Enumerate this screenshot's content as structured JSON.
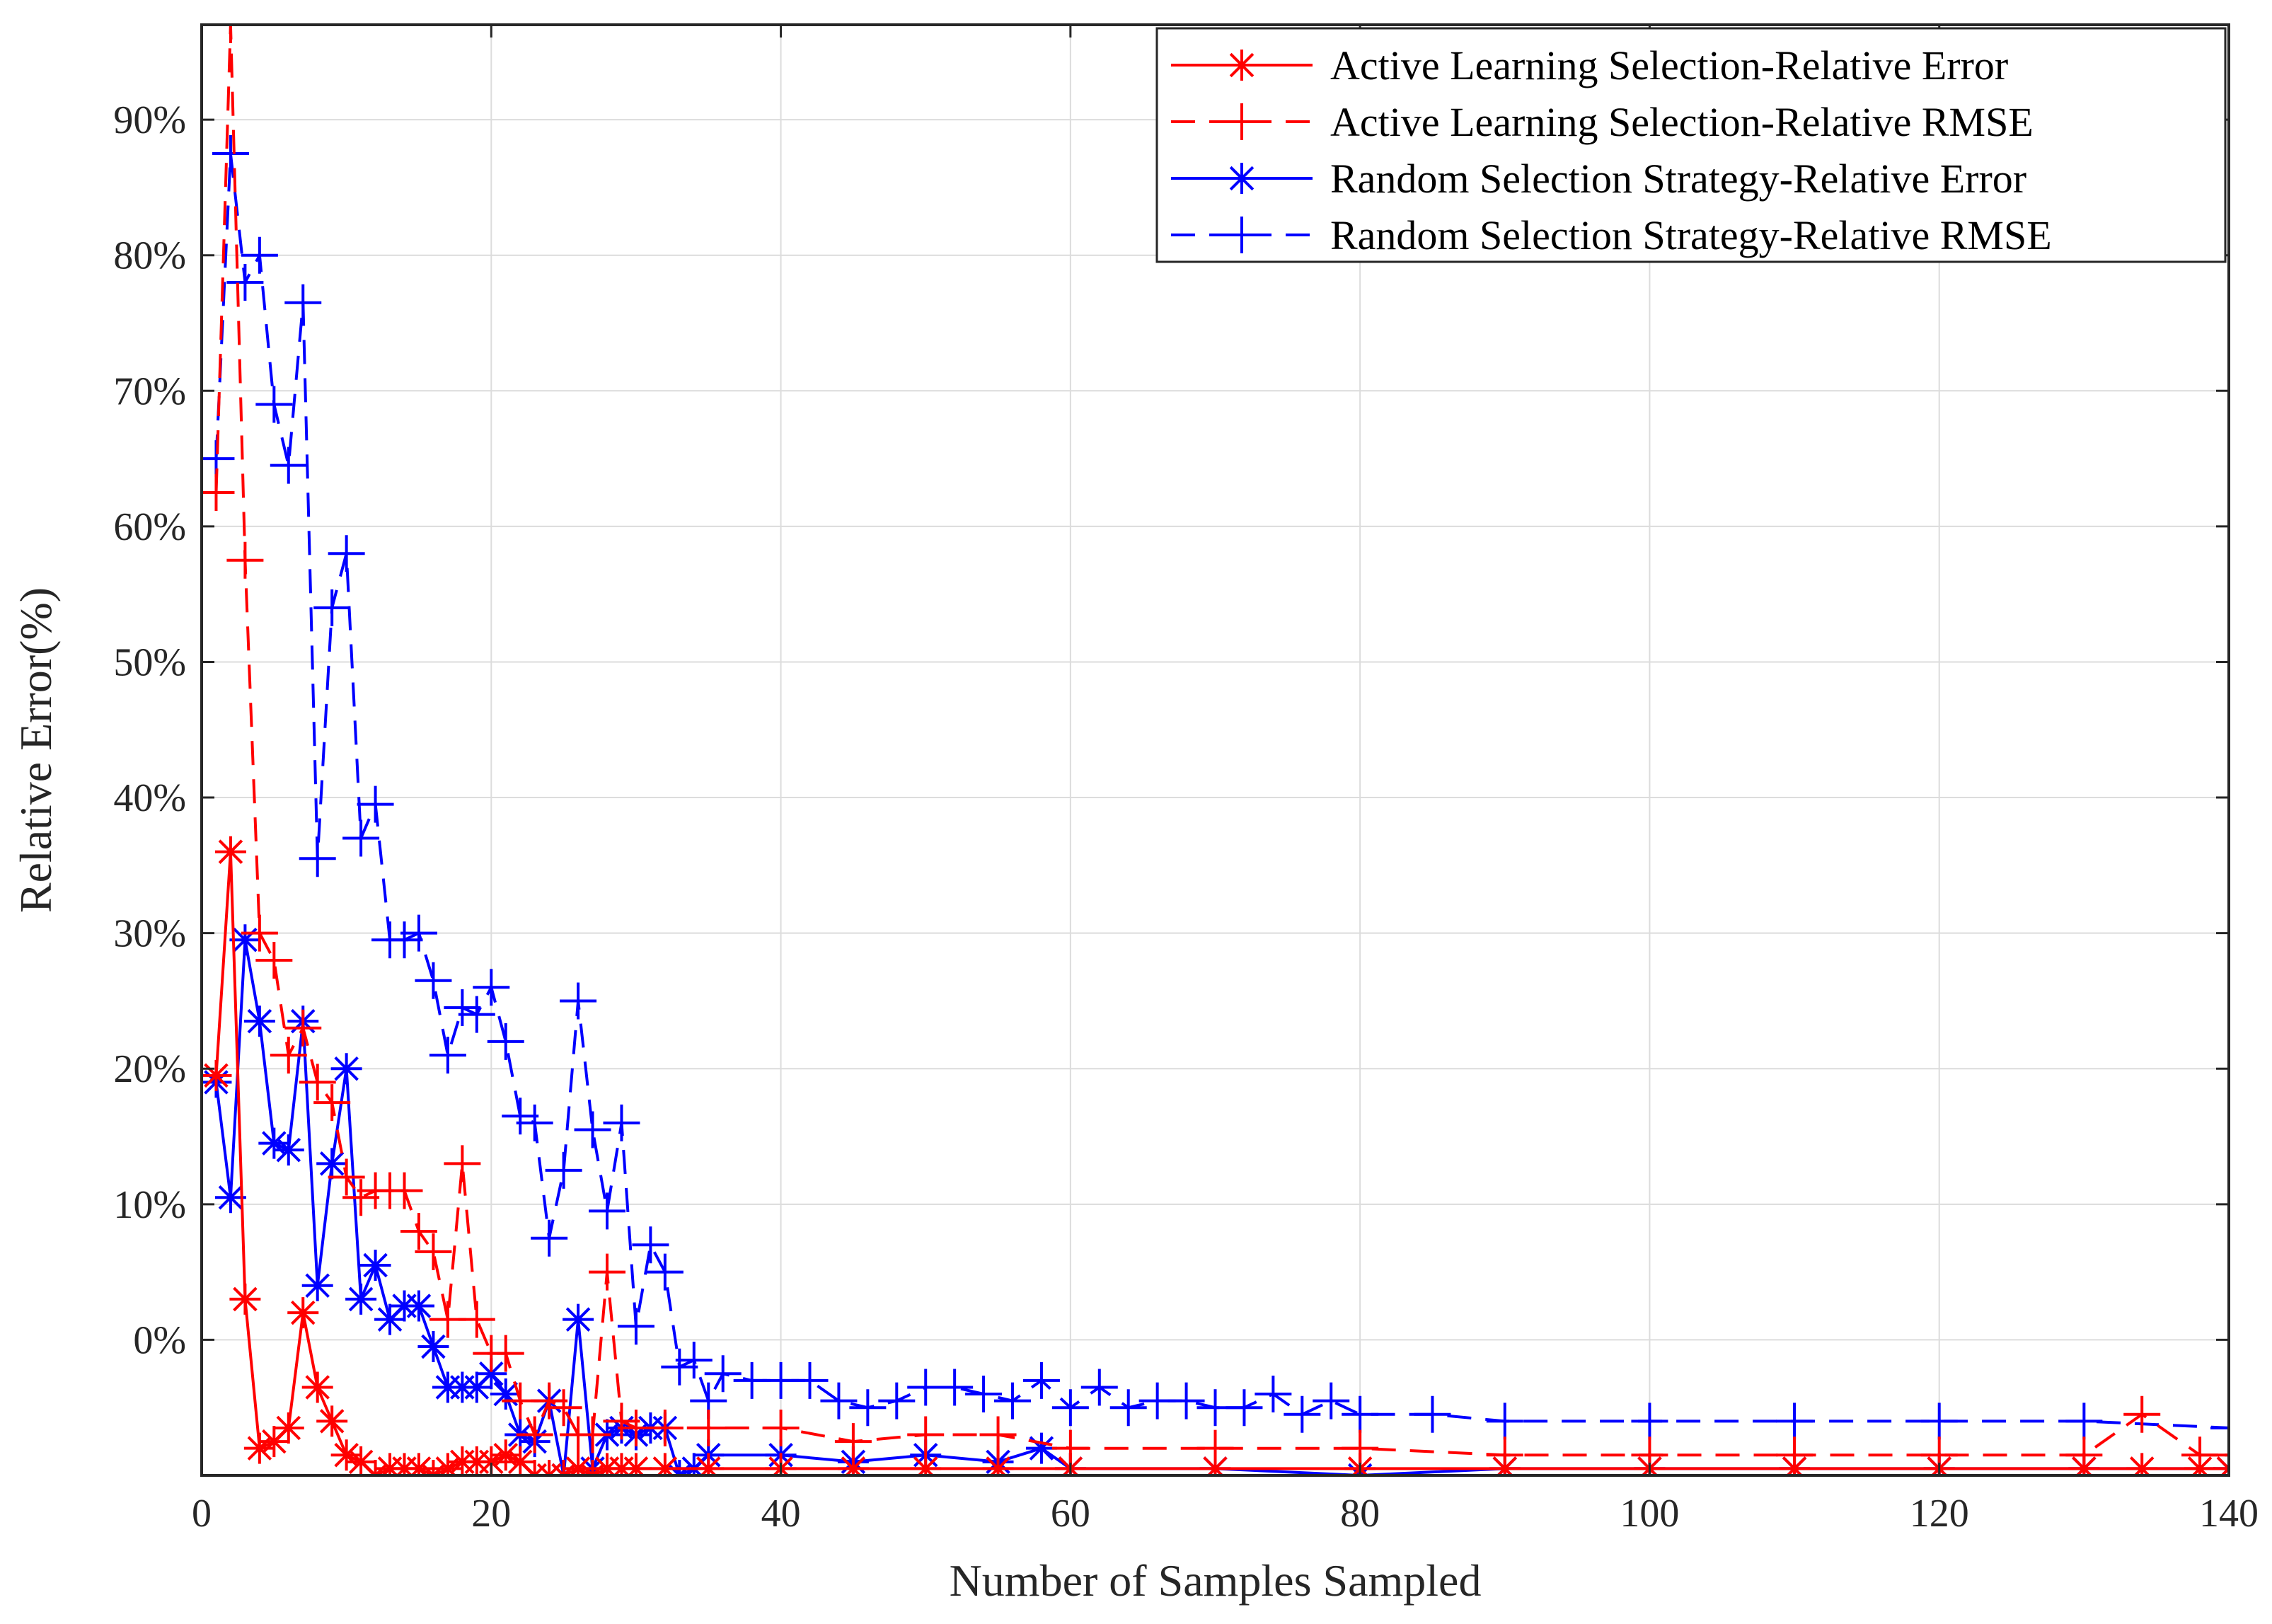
{
  "chart_data": {
    "type": "line",
    "title": "",
    "xlabel": "Number of Samples Sampled",
    "ylabel": "Relative Error(%)",
    "xlim": [
      0,
      140
    ],
    "ylim": [
      -10,
      97
    ],
    "grid": true,
    "legend_position": "top-right",
    "x_ticks": [
      0,
      20,
      40,
      60,
      80,
      100,
      120,
      140
    ],
    "x_tick_labels": [
      "0",
      "20",
      "40",
      "60",
      "80",
      "100",
      "120",
      "140"
    ],
    "y_ticks": [
      0,
      10,
      20,
      30,
      40,
      50,
      60,
      70,
      80,
      90
    ],
    "y_tick_labels": [
      "0%",
      "10%",
      "20%",
      "30%",
      "40%",
      "50%",
      "60%",
      "70%",
      "80%",
      "90%"
    ],
    "series": [
      {
        "name": "Active Learning Selection-Relative Error",
        "color": "#ff0000",
        "line_style": "solid",
        "marker": "asterisk",
        "x": [
          1,
          2,
          3,
          4,
          5,
          6,
          7,
          8,
          9,
          10,
          11,
          12,
          13,
          14,
          15,
          16,
          17,
          18,
          19,
          20,
          21,
          22,
          23,
          24,
          25,
          26,
          27,
          28,
          29,
          30,
          32,
          35,
          40,
          45,
          50,
          55,
          60,
          70,
          80,
          90,
          100,
          110,
          120,
          130,
          134,
          138,
          140
        ],
        "y": [
          19.5,
          36,
          3,
          -8,
          -7.5,
          -6.5,
          2,
          -3.5,
          -6,
          -8.5,
          -9,
          -10,
          -9.5,
          -9.5,
          -9.5,
          -10,
          -9.5,
          -9,
          -9,
          -9,
          -8.5,
          -9,
          -10,
          -10,
          -10,
          -9.5,
          -10,
          -9.5,
          -9.5,
          -9.5,
          -9.5,
          -9.5,
          -9.5,
          -9.5,
          -9.5,
          -9.5,
          -9.5,
          -9.5,
          -9.5,
          -9.5,
          -9.5,
          -9.5,
          -9.5,
          -9.5,
          -9.5,
          -9.5,
          -9.5
        ]
      },
      {
        "name": "Active Learning Selection-Relative RMSE",
        "color": "#ff0000",
        "line_style": "dashed",
        "marker": "plus",
        "x": [
          1,
          2,
          3,
          4,
          5,
          6,
          7,
          8,
          9,
          10,
          11,
          12,
          13,
          14,
          15,
          16,
          17,
          18,
          19,
          20,
          21,
          22,
          23,
          24,
          25,
          26,
          27,
          28,
          29,
          30,
          32,
          35,
          40,
          45,
          50,
          55,
          60,
          70,
          80,
          90,
          100,
          110,
          120,
          130,
          134,
          138,
          140
        ],
        "y": [
          62.5,
          97,
          57.5,
          30,
          28,
          21,
          23,
          19,
          17.5,
          12,
          10.5,
          11,
          11,
          11,
          8,
          6.5,
          1.5,
          13,
          1.5,
          -1,
          -1,
          -4.5,
          -7,
          -4.5,
          -5,
          -7,
          -7,
          5,
          -6,
          -6.5,
          -6.5,
          -6.5,
          -6.5,
          -7.5,
          -7,
          -7,
          -8,
          -8,
          -8,
          -8.5,
          -8.5,
          -8.5,
          -8.5,
          -8.5,
          -5.5,
          -8.5,
          -8.5
        ]
      },
      {
        "name": "Random Selection Strategy-Relative Error",
        "color": "#0000ff",
        "line_style": "solid",
        "marker": "asterisk",
        "x": [
          1,
          2,
          3,
          4,
          5,
          6,
          7,
          8,
          9,
          10,
          11,
          12,
          13,
          14,
          15,
          16,
          17,
          18,
          19,
          20,
          21,
          22,
          23,
          24,
          25,
          26,
          27,
          28,
          29,
          30,
          31,
          32,
          33,
          34,
          35,
          40,
          45,
          50,
          55,
          58,
          60,
          70,
          80,
          90,
          100,
          110,
          120,
          130,
          140
        ],
        "y": [
          19,
          10.5,
          29.5,
          23.5,
          14.5,
          14,
          23.5,
          4,
          13,
          20,
          3,
          5.5,
          1.5,
          2.5,
          2.5,
          -0.5,
          -3.5,
          -3.5,
          -3.5,
          -2.5,
          -4,
          -7,
          -7.5,
          -4.5,
          -10,
          1.5,
          -9.5,
          -7,
          -6.5,
          -7,
          -6.5,
          -6.5,
          -10,
          -9.5,
          -8.5,
          -8.5,
          -9,
          -8.5,
          -9,
          -8,
          -9.5,
          -9.5,
          -10,
          -9.5,
          -9.5,
          -9.5,
          -9.5,
          -9.5,
          -9.5
        ]
      },
      {
        "name": "Random Selection Strategy-Relative RMSE",
        "color": "#0000ff",
        "line_style": "dashed",
        "marker": "plus",
        "x": [
          1,
          2,
          3,
          4,
          5,
          6,
          7,
          8,
          9,
          10,
          11,
          12,
          13,
          14,
          15,
          16,
          17,
          18,
          19,
          20,
          21,
          22,
          23,
          24,
          25,
          26,
          27,
          28,
          29,
          30,
          31,
          32,
          33,
          34,
          35,
          36,
          38,
          40,
          42,
          44,
          46,
          48,
          50,
          52,
          54,
          56,
          58,
          60,
          62,
          64,
          66,
          68,
          70,
          72,
          74,
          76,
          78,
          80,
          85,
          90,
          100,
          110,
          120,
          130,
          140
        ],
        "y": [
          65,
          87.5,
          78,
          80,
          69,
          64.5,
          76.5,
          35.5,
          54,
          58,
          37,
          39.5,
          29.5,
          29.5,
          30,
          26.5,
          21,
          24.5,
          24,
          26,
          22,
          16.5,
          16,
          7.5,
          12.5,
          25,
          15.5,
          9.5,
          16,
          1,
          7,
          5,
          -2,
          -1.5,
          -4.5,
          -2.5,
          -3,
          -3,
          -3,
          -4.5,
          -5,
          -4.5,
          -3.5,
          -3.5,
          -4,
          -4.5,
          -3,
          -5,
          -3.5,
          -5,
          -4.5,
          -4.5,
          -5,
          -5,
          -4,
          -5.5,
          -4.5,
          -5.5,
          -5.5,
          -6,
          -6,
          -6,
          -6,
          -6,
          -6.5
        ]
      }
    ]
  }
}
